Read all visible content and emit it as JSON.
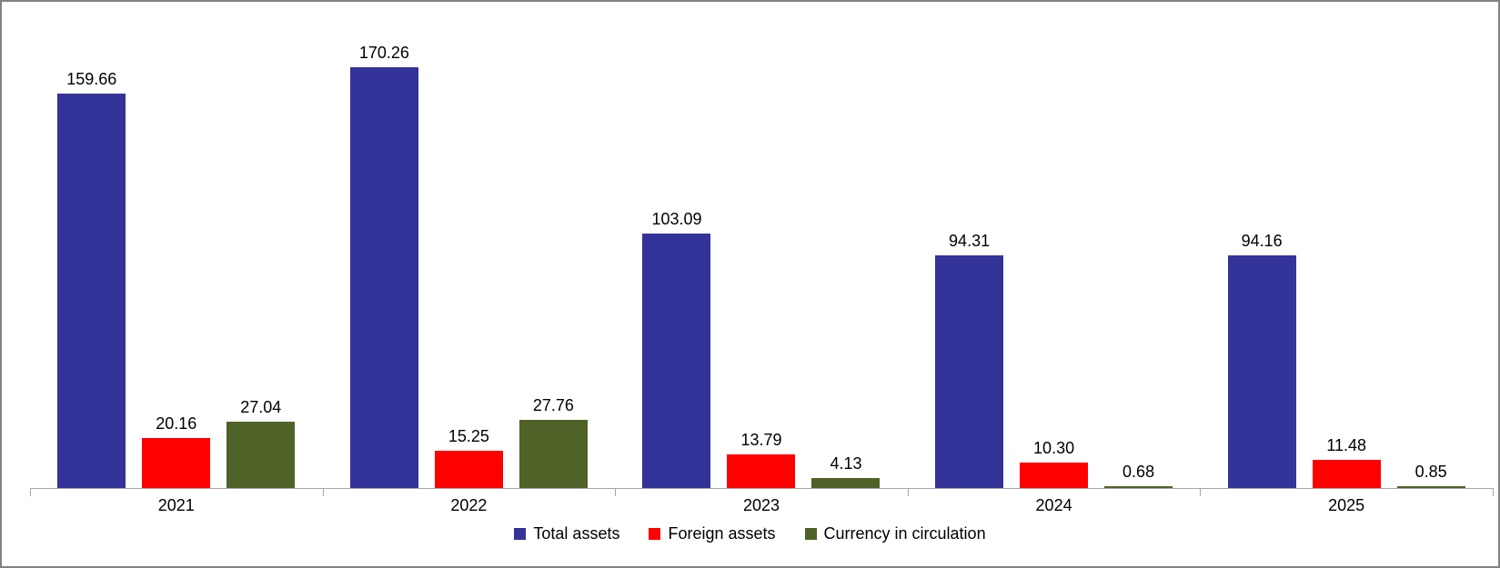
{
  "chart_data": {
    "type": "bar",
    "title": "",
    "xlabel": "",
    "ylabel": "",
    "categories": [
      "2021",
      "2022",
      "2023",
      "2024",
      "2025"
    ],
    "series": [
      {
        "name": "Total assets",
        "color": "#333399",
        "values": [
          159.66,
          170.26,
          103.09,
          94.31,
          94.16
        ]
      },
      {
        "name": "Foreign assets",
        "color": "#FF0000",
        "values": [
          20.16,
          15.25,
          13.79,
          10.3,
          11.48
        ]
      },
      {
        "name": "Currency in circulation",
        "color": "#4F6228",
        "values": [
          27.04,
          27.76,
          4.13,
          0.68,
          0.85
        ]
      }
    ],
    "value_labels_decimals": 2,
    "ylim": [
      0,
      195
    ],
    "grid": false,
    "legend_position": "bottom"
  },
  "colors": {
    "axis_line": "#A6A6A6",
    "frame_border": "#828282",
    "background": "#FFFFFF",
    "label_text": "#000000"
  }
}
